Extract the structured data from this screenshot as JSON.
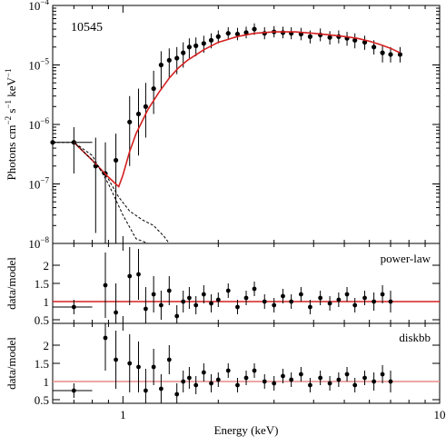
{
  "chart_data": [
    {
      "type": "scatter",
      "panel": "spectrum",
      "annotation": "10545",
      "xlabel": "Energy (keV)",
      "ylabel": "Photons cm^-2 s^-1 keV^-1",
      "ylabel_parts": {
        "base": "Photons cm",
        "e1": "−2",
        "s": " s",
        "e2": "−1",
        "k": " keV",
        "e3": "−1"
      },
      "xscale": "log",
      "yscale": "log",
      "xlim": [
        0.6,
        10
      ],
      "ylim": [
        1e-08,
        0.0001
      ],
      "x_ticks": [
        {
          "value": 1,
          "label": "1"
        },
        {
          "value": 10,
          "label": "10"
        }
      ],
      "y_ticks": [
        {
          "value": 1e-08,
          "base": "10",
          "exp": "−8"
        },
        {
          "value": 1e-07,
          "base": "10",
          "exp": "−7"
        },
        {
          "value": 1e-06,
          "base": "10",
          "exp": "−6"
        },
        {
          "value": 1e-05,
          "base": "10",
          "exp": "−5"
        },
        {
          "value": 0.0001,
          "base": "10",
          "exp": "−4"
        }
      ],
      "series": [
        {
          "kind": "data",
          "x": [
            0.6,
            0.7,
            0.82,
            0.88,
            0.95,
            1.05,
            1.12,
            1.18,
            1.25,
            1.32,
            1.4,
            1.48,
            1.55,
            1.62,
            1.7,
            1.8,
            1.9,
            2.0,
            2.15,
            2.3,
            2.45,
            2.6,
            2.8,
            3.0,
            3.2,
            3.4,
            3.65,
            3.9,
            4.2,
            4.5,
            4.8,
            5.1,
            5.4,
            5.8,
            6.2,
            6.6,
            7.0,
            7.5
          ],
          "y": [
            5e-07,
            5e-07,
            2e-07,
            1.5e-07,
            2.5e-07,
            1.1e-06,
            1.5e-06,
            2e-06,
            4e-06,
            1e-05,
            1.2e-05,
            1.3e-05,
            1.6e-05,
            2e-05,
            2.1e-05,
            2.3e-05,
            2.6e-05,
            3e-05,
            3.4e-05,
            3.3e-05,
            3.5e-05,
            4e-05,
            3.4e-05,
            3.6e-05,
            3.5e-05,
            3.4e-05,
            3.3e-05,
            3e-05,
            3.2e-05,
            2.9e-05,
            3e-05,
            2.8e-05,
            2.6e-05,
            2.4e-05,
            2e-05,
            1.6e-05,
            1.5e-05,
            1.5e-05
          ],
          "y_lo": [
            5e-07,
            1.5e-07,
            1.5e-08,
            1e-08,
            1e-08,
            2e-07,
            3e-07,
            6e-07,
            1.5e-06,
            4e-06,
            6e-06,
            7e-06,
            9e-06,
            1.3e-05,
            1.4e-05,
            1.6e-05,
            1.9e-05,
            2.3e-05,
            2.7e-05,
            2.6e-05,
            2.8e-05,
            3.2e-05,
            2.7e-05,
            2.9e-05,
            2.8e-05,
            2.7e-05,
            2.6e-05,
            2.3e-05,
            2.5e-05,
            2.2e-05,
            2.3e-05,
            2.1e-05,
            1.9e-05,
            1.8e-05,
            1.5e-05,
            1.1e-05,
            1.1e-05,
            1.1e-05
          ],
          "y_hi": [
            5e-07,
            9e-07,
            6e-07,
            5e-07,
            7e-07,
            3e-06,
            4e-06,
            5e-06,
            8e-06,
            1.7e-05,
            1.9e-05,
            2e-05,
            2.4e-05,
            2.8e-05,
            2.9e-05,
            3.1e-05,
            3.4e-05,
            3.8e-05,
            4.3e-05,
            4.2e-05,
            4.4e-05,
            5e-05,
            4.3e-05,
            4.5e-05,
            4.4e-05,
            4.3e-05,
            4.2e-05,
            3.8e-05,
            4.1e-05,
            3.7e-05,
            3.8e-05,
            3.6e-05,
            3.4e-05,
            3.1e-05,
            2.6e-05,
            2.1e-05,
            2e-05,
            2e-05
          ]
        },
        {
          "kind": "model",
          "color": "#d62020",
          "x": [
            0.7,
            0.8,
            0.9,
            0.97,
            1.0,
            1.05,
            1.1,
            1.2,
            1.3,
            1.4,
            1.5,
            1.6,
            1.8,
            2.0,
            2.3,
            2.6,
            3.0,
            3.5,
            4.0,
            4.5,
            5.0,
            5.5,
            6.0,
            6.5,
            7.0,
            7.5
          ],
          "y": [
            5e-07,
            2.5e-07,
            1.3e-07,
            9e-08,
            1.4e-07,
            3.5e-07,
            7e-07,
            1.8e-06,
            3.5e-06,
            6e-06,
            9e-06,
            1.2e-05,
            1.8e-05,
            2.4e-05,
            3e-05,
            3.4e-05,
            3.6e-05,
            3.6e-05,
            3.4e-05,
            3.2e-05,
            3e-05,
            2.8e-05,
            2.5e-05,
            2.2e-05,
            1.9e-05,
            1.6e-05
          ]
        },
        {
          "kind": "component",
          "dash": true,
          "x": [
            0.7,
            0.8,
            0.9,
            0.97,
            1.05,
            1.15,
            1.25,
            1.35,
            1.4
          ],
          "y": [
            5e-07,
            2.5e-07,
            1.2e-07,
            6e-08,
            3.5e-08,
            2.5e-08,
            2e-08,
            1.3e-08,
            1e-08
          ]
        },
        {
          "kind": "component",
          "dash": true,
          "x": [
            0.6,
            0.7,
            0.8,
            0.9,
            1.0,
            1.1,
            1.2
          ],
          "y": [
            5e-07,
            5e-07,
            3e-07,
            1e-07,
            3e-08,
            1.2e-08,
            1e-08
          ]
        }
      ]
    },
    {
      "type": "scatter",
      "panel": "ratio",
      "label": "power-law",
      "ylabel": "data/model",
      "xscale": "log",
      "xlim": [
        0.6,
        10
      ],
      "ylim": [
        0.4,
        2.6
      ],
      "y_ticks": [
        0.5,
        1,
        1.5,
        2
      ],
      "reference": {
        "y": 1,
        "color": "#d62020"
      },
      "x": [
        0.7,
        0.88,
        0.95,
        1.05,
        1.12,
        1.18,
        1.25,
        1.32,
        1.4,
        1.48,
        1.55,
        1.62,
        1.7,
        1.8,
        1.9,
        2.0,
        2.15,
        2.3,
        2.45,
        2.6,
        2.8,
        3.0,
        3.2,
        3.4,
        3.65,
        3.9,
        4.2,
        4.5,
        4.8,
        5.1,
        5.4,
        5.8,
        6.2,
        6.6,
        7.0
      ],
      "y": [
        0.85,
        1.45,
        0.7,
        1.7,
        1.75,
        0.8,
        1.2,
        0.9,
        1.3,
        0.6,
        1.0,
        1.1,
        0.9,
        1.2,
        0.95,
        1.05,
        1.3,
        0.85,
        1.1,
        1.35,
        1.0,
        0.9,
        1.15,
        1.0,
        1.2,
        0.85,
        1.1,
        0.95,
        1.05,
        1.2,
        0.9,
        1.1,
        1.0,
        1.2,
        1.0
      ],
      "err": [
        0.2,
        0.9,
        0.8,
        0.8,
        0.7,
        0.6,
        0.5,
        0.4,
        0.4,
        0.3,
        0.3,
        0.3,
        0.25,
        0.25,
        0.25,
        0.2,
        0.2,
        0.2,
        0.2,
        0.2,
        0.2,
        0.2,
        0.2,
        0.2,
        0.2,
        0.2,
        0.2,
        0.2,
        0.2,
        0.2,
        0.2,
        0.2,
        0.25,
        0.25,
        0.3
      ]
    },
    {
      "type": "scatter",
      "panel": "ratio",
      "label": "diskbb",
      "ylabel": "data/model",
      "xscale": "log",
      "xlim": [
        0.6,
        10
      ],
      "ylim": [
        0.4,
        2.6
      ],
      "y_ticks": [
        0.5,
        1,
        1.5,
        2
      ],
      "reference": {
        "y": 1,
        "color": "#e88a8a"
      },
      "x_ticks": [
        {
          "value": 1,
          "label": "1"
        },
        {
          "value": 10,
          "label": "10"
        }
      ],
      "xlabel": "Energy (keV)",
      "x": [
        0.7,
        0.88,
        0.95,
        1.05,
        1.12,
        1.18,
        1.25,
        1.32,
        1.4,
        1.48,
        1.55,
        1.62,
        1.7,
        1.8,
        1.9,
        2.0,
        2.15,
        2.3,
        2.45,
        2.6,
        2.8,
        3.0,
        3.2,
        3.4,
        3.65,
        3.9,
        4.2,
        4.5,
        4.8,
        5.1,
        5.4,
        5.8,
        6.2,
        6.6,
        7.0
      ],
      "y": [
        0.75,
        2.2,
        1.6,
        1.5,
        1.4,
        0.75,
        1.4,
        0.8,
        1.6,
        0.65,
        1.0,
        1.1,
        0.9,
        1.25,
        0.95,
        1.05,
        1.3,
        0.9,
        1.1,
        1.3,
        1.0,
        0.95,
        1.15,
        1.05,
        1.2,
        0.9,
        1.1,
        0.95,
        1.05,
        1.2,
        0.9,
        1.1,
        1.0,
        1.2,
        1.0
      ],
      "err": [
        0.2,
        0.9,
        0.8,
        0.8,
        0.7,
        0.6,
        0.5,
        0.4,
        0.4,
        0.3,
        0.3,
        0.3,
        0.25,
        0.25,
        0.25,
        0.2,
        0.2,
        0.2,
        0.2,
        0.2,
        0.2,
        0.2,
        0.2,
        0.2,
        0.2,
        0.2,
        0.2,
        0.2,
        0.2,
        0.2,
        0.2,
        0.2,
        0.25,
        0.25,
        0.3
      ]
    }
  ]
}
